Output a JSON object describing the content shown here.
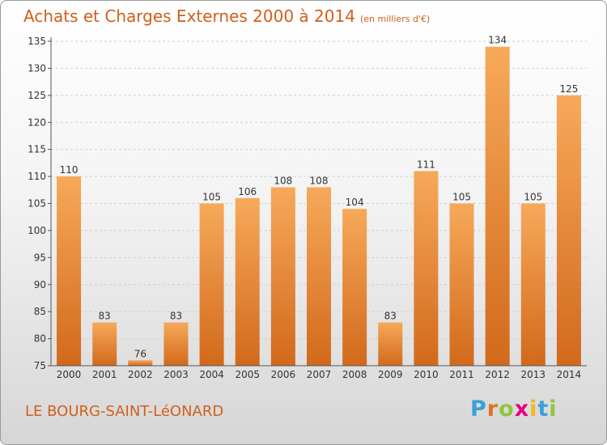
{
  "header": {
    "title": "Achats et Charges Externes 2000 à 2014",
    "subtitle": "(en milliers d'€)"
  },
  "footer": {
    "commune": "LE BOURG-SAINT-LéONARD",
    "logo": [
      {
        "ch": "P",
        "color": "#3aa0d8"
      },
      {
        "ch": "r",
        "color": "#e0731f"
      },
      {
        "ch": "o",
        "color": "#8cc63f"
      },
      {
        "ch": "x",
        "color": "#e5007e"
      },
      {
        "ch": "i",
        "color": "#f2b81b"
      },
      {
        "ch": "t",
        "color": "#3aa0d8"
      },
      {
        "ch": "i",
        "color": "#8cc63f"
      }
    ]
  },
  "chart_data": {
    "type": "bar",
    "categories": [
      "2000",
      "2001",
      "2002",
      "2003",
      "2004",
      "2005",
      "2006",
      "2007",
      "2008",
      "2009",
      "2010",
      "2011",
      "2012",
      "2013",
      "2014"
    ],
    "values": [
      110,
      83,
      76,
      83,
      105,
      106,
      108,
      108,
      104,
      83,
      111,
      105,
      134,
      105,
      125
    ],
    "title": "Achats et Charges Externes 2000 à 2014",
    "subtitle": "(en milliers d'€)",
    "ylim": [
      75,
      135
    ],
    "yticks": [
      75,
      80,
      85,
      90,
      95,
      100,
      105,
      110,
      115,
      120,
      125,
      130,
      135
    ],
    "grid": true,
    "colors": {
      "bar_light": "#f7a95a",
      "bar_dark": "#d2691b",
      "axis": "#555555",
      "grid": "#cfcfcf"
    }
  }
}
